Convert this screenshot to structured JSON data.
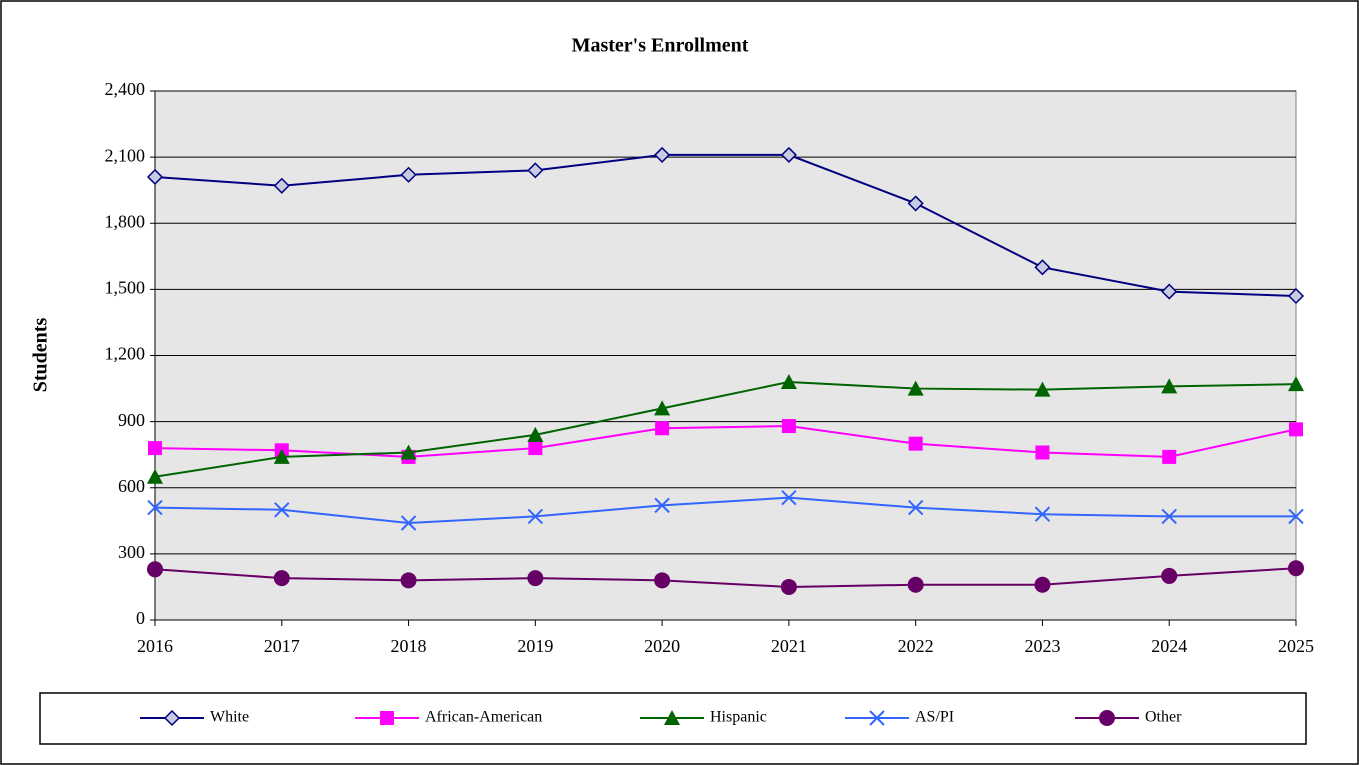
{
  "chart_data": {
    "type": "line",
    "title": "Master's Enrollment",
    "y_label": "Students",
    "x": [
      2016,
      2017,
      2018,
      2019,
      2020,
      2021,
      2022,
      2023,
      2024,
      2025
    ],
    "xlim": [
      2016,
      2025
    ],
    "xticks": [
      2016,
      2017,
      2018,
      2019,
      2020,
      2021,
      2022,
      2023,
      2024,
      2025
    ],
    "ylim": [
      0,
      2400
    ],
    "yticks": [
      0,
      300,
      600,
      900,
      {
        "value": 1200,
        "label": "1,200"
      },
      {
        "value": 1500,
        "label": "1,500"
      },
      {
        "value": 1800,
        "label": "1,800"
      },
      {
        "value": 2100,
        "label": "2,100"
      },
      {
        "value": 2400,
        "label": "2,400"
      }
    ],
    "grid": true,
    "legend": "bottom",
    "series": [
      {
        "name": "White",
        "color": "#000080",
        "marker": "diamond",
        "values": [
          2010,
          1970,
          2020,
          2040,
          2110,
          2110,
          1890,
          1600,
          1490,
          1470
        ]
      },
      {
        "name": "African-American",
        "color": "#ff00ff",
        "marker": "square",
        "values": [
          780,
          770,
          740,
          780,
          870,
          880,
          800,
          760,
          740,
          865
        ]
      },
      {
        "name": "Hispanic",
        "color": "#006400",
        "marker": "triangle",
        "values": [
          650,
          740,
          760,
          840,
          960,
          1080,
          1050,
          1045,
          1060,
          1070
        ]
      },
      {
        "name": "AS/PI",
        "color": "#3366ff",
        "marker": "x",
        "values": [
          510,
          500,
          440,
          470,
          520,
          555,
          510,
          480,
          470,
          470
        ]
      },
      {
        "name": "Other",
        "color": "#660066",
        "marker": "circle",
        "values": [
          230,
          190,
          180,
          190,
          180,
          150,
          160,
          160,
          200,
          235
        ]
      }
    ]
  }
}
